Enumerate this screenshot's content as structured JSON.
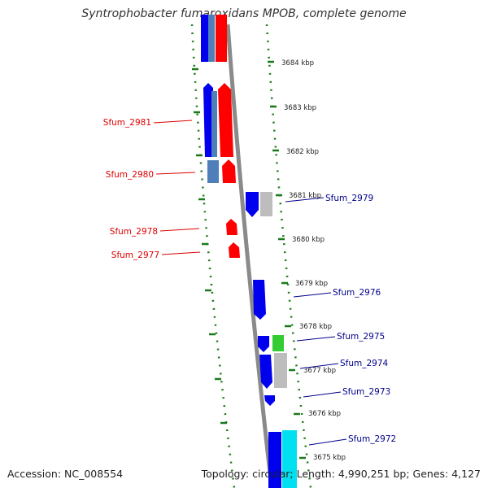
{
  "title": "Syntrophobacter fumaroxidans MPOB, complete genome",
  "accession": "Accession: NC_008554",
  "stats": "Topology: circular; Length: 4,990,251 bp; Genes: 4,127",
  "colors": {
    "forward_cds": "#0000ee",
    "reverse_cds": "#ff0000",
    "steelblue": "#4f7fb8",
    "backbone": "#8a8a8a",
    "tick": "#1a7a1a",
    "grey_feature": "#bdbdbd",
    "green_feature": "#33cc33",
    "cyan_feature": "#00e0f0",
    "label_left": "#dd0000",
    "label_right": "#00008b"
  },
  "kbp_labels": [
    "3684 kbp",
    "3683 kbp",
    "3682 kbp",
    "3681 kbp",
    "3680 kbp",
    "3679 kbp",
    "3678 kbp",
    "3677 kbp",
    "3676 kbp",
    "3675 kbp"
  ],
  "left_genes": [
    "Sfum_2981",
    "Sfum_2980",
    "Sfum_2978",
    "Sfum_2977"
  ],
  "right_genes": [
    "Sfum_2979",
    "Sfum_2976",
    "Sfum_2975",
    "Sfum_2974",
    "Sfum_2973",
    "Sfum_2972"
  ]
}
